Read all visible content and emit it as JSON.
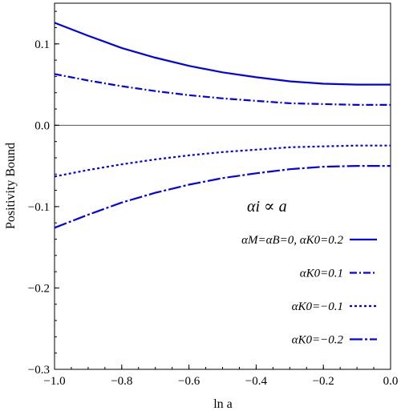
{
  "chart_data": {
    "type": "line",
    "title": "",
    "xlabel": "ln a",
    "ylabel": "Positivity Bound",
    "xlim": [
      -1.0,
      0.0
    ],
    "ylim": [
      -0.3,
      0.15
    ],
    "xticks": [
      -1.0,
      -0.8,
      -0.6,
      -0.4,
      -0.2,
      0.0
    ],
    "xtick_labels": [
      "−1.0",
      "−0.8",
      "−0.6",
      "−0.4",
      "−0.2",
      "0.0"
    ],
    "yticks": [
      -0.3,
      -0.2,
      -0.1,
      0.0,
      0.1
    ],
    "ytick_labels": [
      "−0.3",
      "−0.2",
      "−0.1",
      "0.0",
      "0.1"
    ],
    "grid": false,
    "legend_position": "lower-right",
    "annotation": "αi ∝ a",
    "series": [
      {
        "name": "αM=αB=0,  αK0=0.2",
        "color": "#0000ee",
        "dash": "solid",
        "x": [
          -1.0,
          -0.9,
          -0.8,
          -0.7,
          -0.6,
          -0.5,
          -0.4,
          -0.3,
          -0.2,
          -0.1,
          0.0
        ],
        "y": [
          0.126,
          0.11,
          0.095,
          0.083,
          0.073,
          0.065,
          0.059,
          0.054,
          0.051,
          0.05,
          0.05
        ]
      },
      {
        "name": "αK0=0.1",
        "color": "#0000ee",
        "dash": "dashdot",
        "x": [
          -1.0,
          -0.9,
          -0.8,
          -0.7,
          -0.6,
          -0.5,
          -0.4,
          -0.3,
          -0.2,
          -0.1,
          0.0
        ],
        "y": [
          0.063,
          0.055,
          0.048,
          0.042,
          0.037,
          0.033,
          0.03,
          0.027,
          0.026,
          0.025,
          0.025
        ]
      },
      {
        "name": "αK0=−0.1",
        "color": "#0000ee",
        "dash": "dotted",
        "x": [
          -1.0,
          -0.9,
          -0.8,
          -0.7,
          -0.6,
          -0.5,
          -0.4,
          -0.3,
          -0.2,
          -0.1,
          0.0
        ],
        "y": [
          -0.063,
          -0.055,
          -0.048,
          -0.042,
          -0.037,
          -0.033,
          -0.03,
          -0.027,
          -0.026,
          -0.025,
          -0.025
        ]
      },
      {
        "name": "αK0=−0.2",
        "color": "#0000ee",
        "dash": "longdash",
        "x": [
          -1.0,
          -0.9,
          -0.8,
          -0.7,
          -0.6,
          -0.5,
          -0.4,
          -0.3,
          -0.2,
          -0.1,
          0.0
        ],
        "y": [
          -0.126,
          -0.11,
          -0.095,
          -0.083,
          -0.073,
          -0.065,
          -0.059,
          -0.054,
          -0.051,
          -0.05,
          -0.05
        ]
      }
    ]
  }
}
